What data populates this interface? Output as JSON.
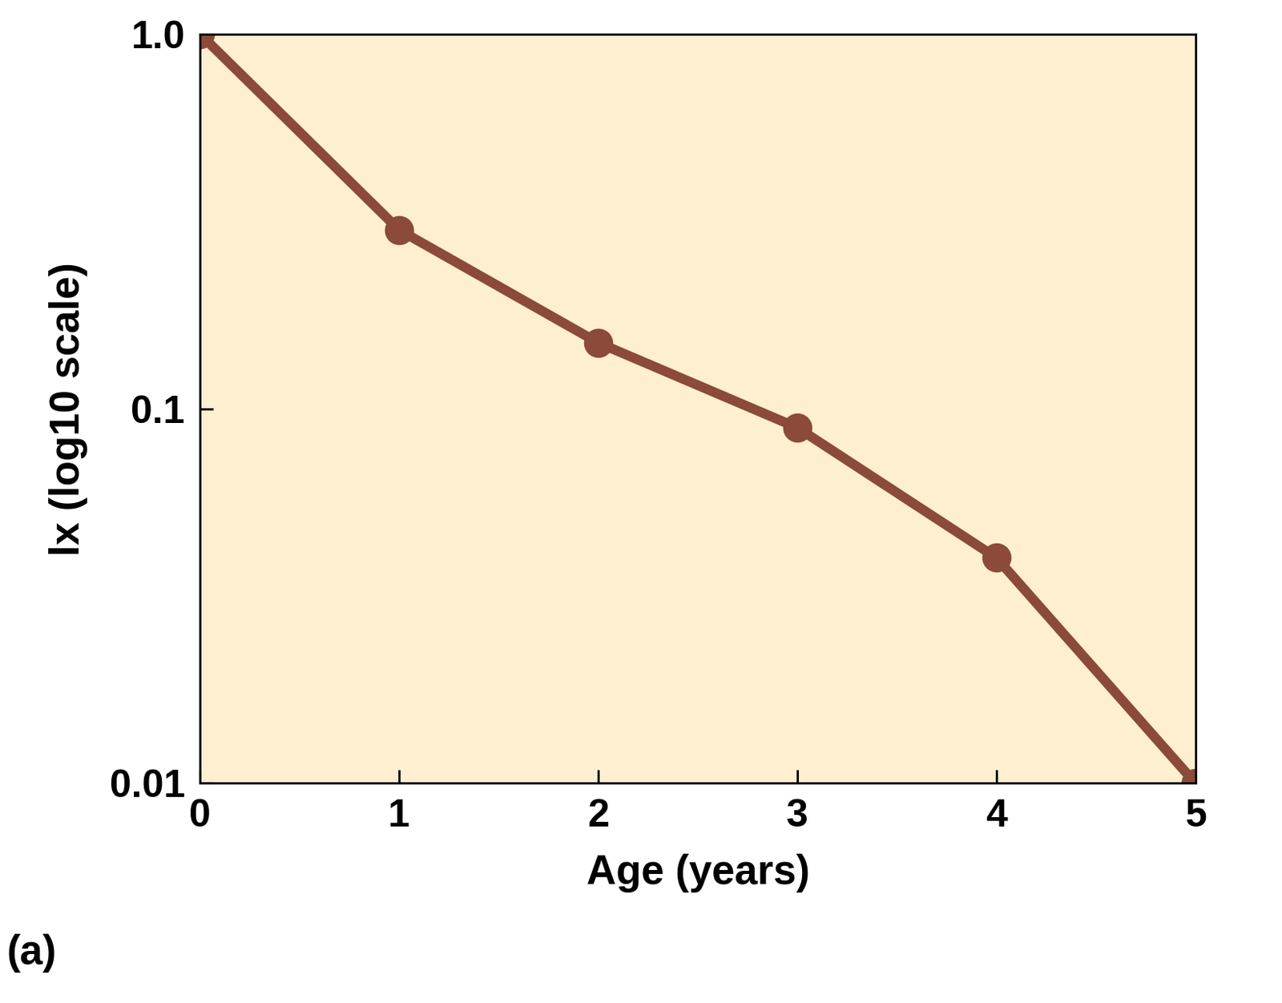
{
  "chart_data": {
    "type": "line",
    "x": [
      0,
      1,
      2,
      3,
      4,
      5
    ],
    "values": [
      1.0,
      0.3,
      0.15,
      0.089,
      0.04,
      0.01
    ],
    "color": "#8b4a3a",
    "marker": "o",
    "line_style": "solid",
    "x_label": "Age (years)",
    "y_label": "lx (log10 scale)",
    "annotation": "(a)",
    "log": "y",
    "xlim": [
      0,
      5
    ],
    "xticks": [
      0,
      1,
      2,
      3,
      4,
      5
    ],
    "ylim": [
      0.01,
      1
    ],
    "yticks": [
      0.01,
      0.1,
      {
        "value": 1,
        "label": "1.0"
      }
    ],
    "grid": false
  }
}
